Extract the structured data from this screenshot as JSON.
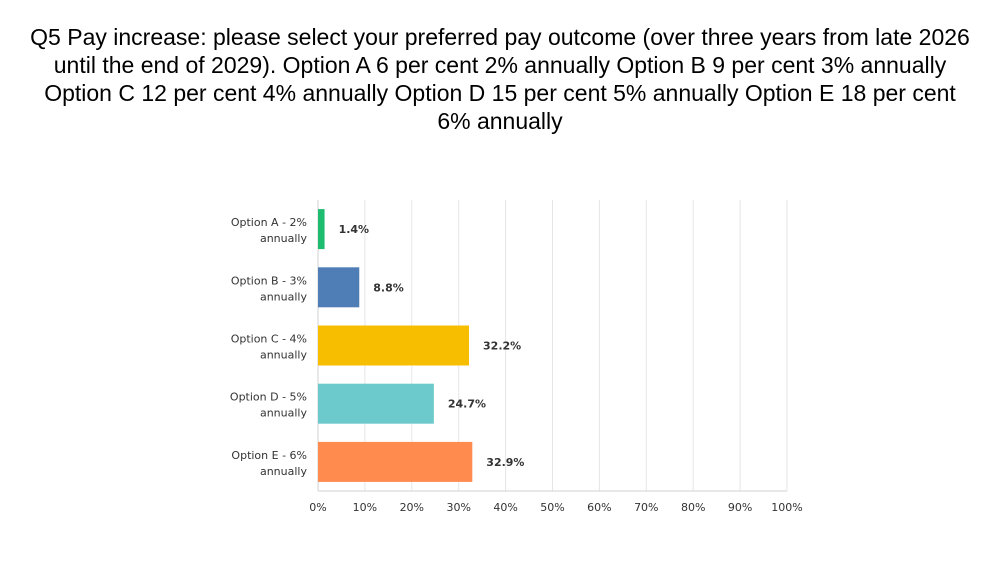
{
  "title_lines": [
    "Q5 Pay increase: please select your preferred pay outcome (over three years from late 2026",
    "until the end of 2029). Option A 6 per cent 2% annually Option B 9 per cent 3% annually",
    "Option C 12 per cent 4% annually Option D 15 per cent 5% annually Option E 18 per cent",
    "6% annually"
  ],
  "chart_data": {
    "type": "bar",
    "orientation": "horizontal",
    "categories": [
      [
        "Option A - 2%",
        "annually"
      ],
      [
        "Option B - 3%",
        "annually"
      ],
      [
        "Option C - 4%",
        "annually"
      ],
      [
        "Option D - 5%",
        "annually"
      ],
      [
        "Option E - 6%",
        "annually"
      ]
    ],
    "values": [
      1.4,
      8.8,
      32.2,
      24.7,
      32.9
    ],
    "value_labels": [
      "1.4%",
      "8.8%",
      "32.2%",
      "24.7%",
      "32.9%"
    ],
    "colors": [
      "#1ebc6f",
      "#4f7db5",
      "#f7be00",
      "#6ccacd",
      "#ff8b4e"
    ],
    "xlim": [
      0,
      100
    ],
    "x_ticks": [
      0,
      10,
      20,
      30,
      40,
      50,
      60,
      70,
      80,
      90,
      100
    ],
    "x_tick_labels": [
      "0%",
      "10%",
      "20%",
      "30%",
      "40%",
      "50%",
      "60%",
      "70%",
      "80%",
      "90%",
      "100%"
    ],
    "grid": true,
    "legend": "none"
  }
}
